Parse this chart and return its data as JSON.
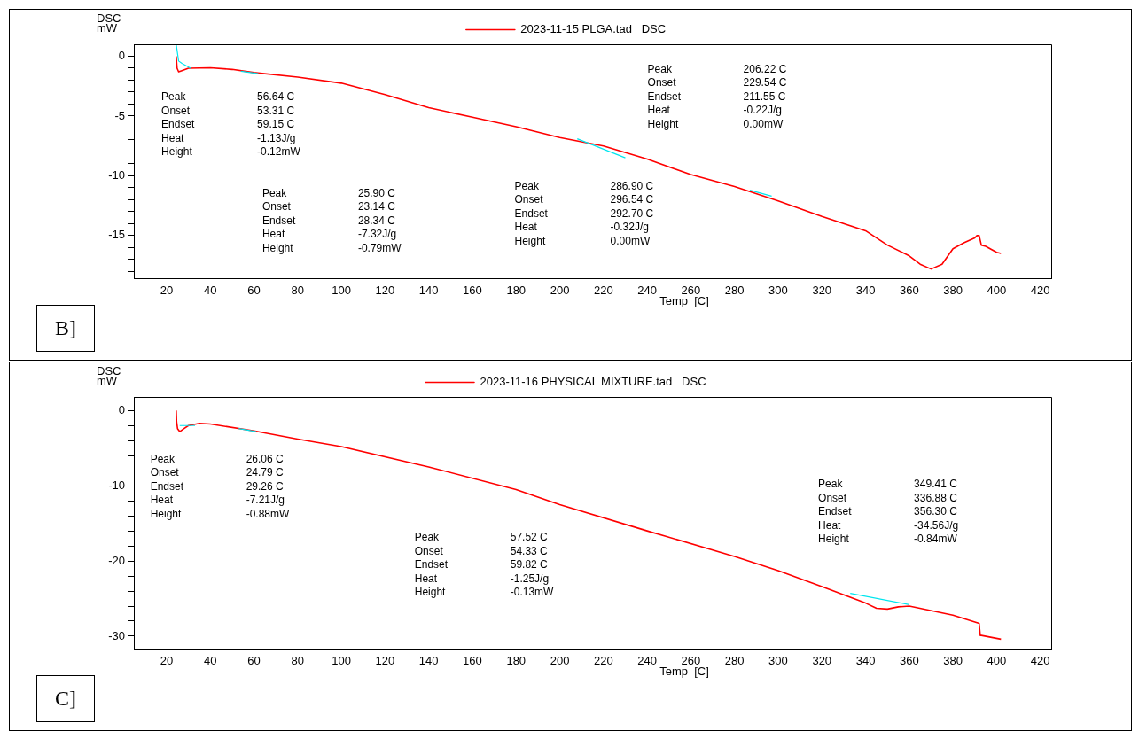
{
  "chart_data": [
    {
      "type": "line",
      "title": "B]",
      "xlabel": "Temp  [C]",
      "ylabel": "DSC\nmW",
      "legend": "top",
      "marker": "none",
      "line_style": "solid",
      "xlim": [
        5,
        425
      ],
      "xticks": [
        20,
        40,
        60,
        80,
        100,
        120,
        140,
        160,
        180,
        200,
        220,
        240,
        260,
        280,
        300,
        320,
        340,
        360,
        380,
        400,
        420
      ],
      "ylim": [
        -18.6,
        1
      ],
      "yticks": [
        0,
        {
          "value": -1,
          "label": null
        },
        {
          "value": -2,
          "label": null
        },
        {
          "value": -3,
          "label": null
        },
        {
          "value": -4,
          "label": null
        },
        -5,
        {
          "value": -6,
          "label": null
        },
        {
          "value": -7,
          "label": null
        },
        {
          "value": -8,
          "label": null
        },
        {
          "value": -9,
          "label": null
        },
        -10,
        {
          "value": -11,
          "label": null
        },
        {
          "value": -12,
          "label": null
        },
        {
          "value": -13,
          "label": null
        },
        {
          "value": -14,
          "label": null
        },
        -15,
        {
          "value": -16,
          "label": null
        },
        {
          "value": -17,
          "label": null
        },
        {
          "value": -18,
          "label": null
        }
      ],
      "series": [
        {
          "name": "2023-11-15 PLGA.tad   DSC",
          "color": "#ff0000",
          "x": [
            24.4,
            24.8,
            25.5,
            27,
            30,
            40,
            50,
            60,
            80,
            100,
            120,
            140,
            160,
            180,
            200,
            220,
            240,
            260,
            280,
            300,
            320,
            340,
            350,
            360,
            365,
            370,
            375,
            380,
            385,
            390,
            391,
            392,
            393,
            395,
            400,
            402
          ],
          "values": [
            0,
            -1.0,
            -1.3,
            -1.2,
            -1.0,
            -0.97,
            -1.1,
            -1.36,
            -1.74,
            -2.25,
            -3.2,
            -4.3,
            -5.1,
            -5.9,
            -6.8,
            -7.5,
            -8.6,
            -9.9,
            -10.9,
            -12.1,
            -13.4,
            -14.6,
            -15.8,
            -16.7,
            -17.4,
            -17.8,
            -17.4,
            -16.1,
            -15.6,
            -15.2,
            -15.0,
            -15.0,
            -15.8,
            -15.9,
            -16.4,
            -16.5
          ]
        },
        {
          "color": "#00e5ee",
          "x": [
            24.4,
            25.5,
            27,
            31
          ],
          "values": [
            1,
            -0.4,
            -0.6,
            -1.0
          ]
        },
        {
          "color": "#00e5ee",
          "x": [
            54,
            62
          ],
          "values": [
            -1.25,
            -1.45
          ]
        },
        {
          "color": "#00e5ee",
          "x": [
            208,
            230
          ],
          "values": [
            -6.9,
            -8.5
          ]
        },
        {
          "color": "#00e5ee",
          "x": [
            287,
            297
          ],
          "values": [
            -11.2,
            -11.7
          ]
        }
      ],
      "annotations": [
        "Peak\t206.22 C\nOnset\t229.54 C\nEndset\t211.55 C\nHeat\t-0.22J/g\nHeight\t0.00mW",
        "Peak\t56.64 C\nOnset\t53.31 C\nEndset\t59.15 C\nHeat\t-1.13J/g\nHeight\t-0.12mW",
        "Peak\t286.90 C\nOnset\t296.54 C\nEndset\t292.70 C\nHeat\t-0.32J/g\nHeight\t0.00mW",
        "Peak\t25.90 C\nOnset\t23.14 C\nEndset\t28.34 C\nHeat\t-7.32J/g\nHeight\t-0.79mW"
      ]
    },
    {
      "type": "line",
      "title": "C]",
      "xlabel": "Temp  [C]",
      "ylabel": "DSC\nmW",
      "legend": "top",
      "marker": "none",
      "line_style": "solid",
      "xlim": [
        5,
        425
      ],
      "xticks": [
        20,
        40,
        60,
        80,
        100,
        120,
        140,
        160,
        180,
        200,
        220,
        240,
        260,
        280,
        300,
        320,
        340,
        360,
        380,
        400,
        420
      ],
      "ylim": [
        -31.7,
        1.8
      ],
      "yticks": [
        0,
        {
          "value": -2,
          "label": null
        },
        {
          "value": -4,
          "label": null
        },
        {
          "value": -6,
          "label": null
        },
        {
          "value": -8,
          "label": null
        },
        -10,
        {
          "value": -12,
          "label": null
        },
        {
          "value": -14,
          "label": null
        },
        {
          "value": -16,
          "label": null
        },
        {
          "value": -18,
          "label": null
        },
        -20,
        {
          "value": -22,
          "label": null
        },
        {
          "value": -24,
          "label": null
        },
        {
          "value": -26,
          "label": null
        },
        {
          "value": -28,
          "label": null
        },
        -30
      ],
      "series": [
        {
          "name": "2023-11-16 PHYSICAL MIXTURE.tad   DSC",
          "color": "#ff0000",
          "x": [
            24.4,
            24.6,
            25,
            26,
            28,
            30,
            35,
            40,
            60,
            80,
            100,
            140,
            180,
            200,
            240,
            280,
            300,
            320,
            330,
            340,
            345,
            350,
            355,
            360,
            380,
            392,
            392.5,
            393,
            402
          ],
          "values": [
            0,
            -1.5,
            -2.4,
            -2.8,
            -2.4,
            -2.0,
            -1.7,
            -1.8,
            -2.7,
            -3.8,
            -4.8,
            -7.5,
            -10.5,
            -12.5,
            -16.0,
            -19.4,
            -21.3,
            -23.4,
            -24.5,
            -25.6,
            -26.3,
            -26.4,
            -26.1,
            -26.0,
            -27.2,
            -28.3,
            -29.9,
            -29.9,
            -30.4
          ]
        },
        {
          "color": "#00e5ee",
          "x": [
            26,
            33
          ],
          "values": [
            -2.0,
            -2.0
          ]
        },
        {
          "color": "#00e5ee",
          "x": [
            53,
            61
          ],
          "values": [
            -2.4,
            -2.8
          ]
        },
        {
          "color": "#00e5ee",
          "x": [
            333,
            360
          ],
          "values": [
            -24.3,
            -25.8
          ]
        }
      ],
      "annotations": [
        "Peak\t26.06 C\nOnset\t24.79 C\nEndset\t29.26 C\nHeat\t-7.21J/g\nHeight\t-0.88mW",
        "Peak\t349.41 C\nOnset\t336.88 C\nEndset\t356.30 C\nHeat\t-34.56J/g\nHeight\t-0.84mW",
        "Peak\t57.52 C\nOnset\t54.33 C\nEndset\t59.82 C\nHeat\t-1.25J/g\nHeight\t-0.13mW"
      ]
    }
  ]
}
